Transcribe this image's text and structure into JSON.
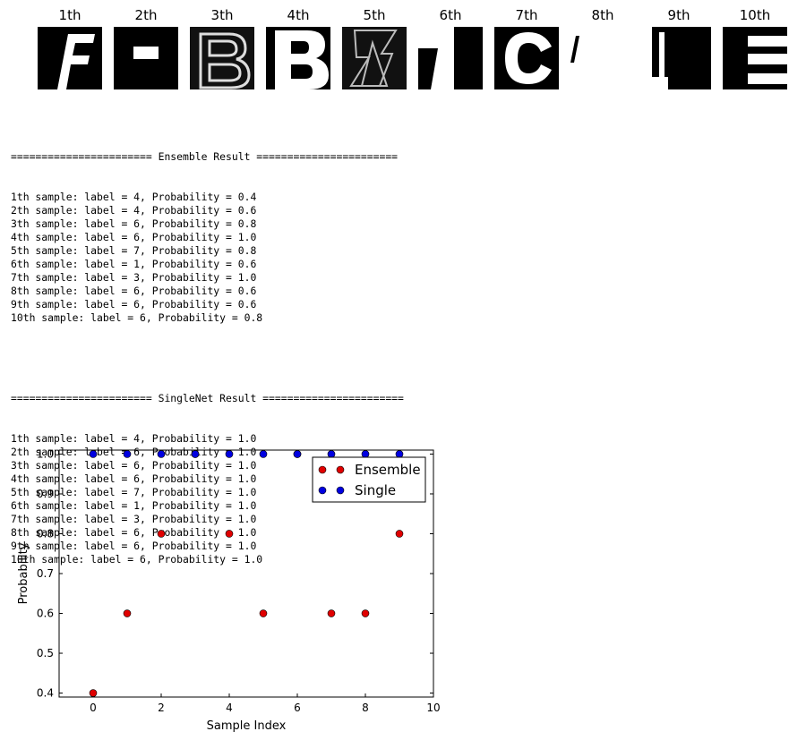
{
  "samples": {
    "labels": [
      "1th",
      "2th",
      "3th",
      "4th",
      "5th",
      "6th",
      "7th",
      "8th",
      "9th",
      "10th"
    ],
    "glyphs": [
      "F",
      "",
      "B",
      "B",
      "Z",
      "T",
      "C",
      "",
      "",
      "E"
    ]
  },
  "console": {
    "ensemble_header": "======================= Ensemble Result =======================",
    "ensemble_lines": [
      "1th sample: label = 4, Probability = 0.4",
      "2th sample: label = 4, Probability = 0.6",
      "3th sample: label = 6, Probability = 0.8",
      "4th sample: label = 6, Probability = 1.0",
      "5th sample: label = 7, Probability = 0.8",
      "6th sample: label = 1, Probability = 0.6",
      "7th sample: label = 3, Probability = 1.0",
      "8th sample: label = 6, Probability = 0.6",
      "9th sample: label = 6, Probability = 0.6",
      "10th sample: label = 6, Probability = 0.8"
    ],
    "single_header": "======================= SingleNet Result =======================",
    "single_lines": [
      "1th sample: label = 4, Probability = 1.0",
      "2th sample: label = 6, Probability = 1.0",
      "3th sample: label = 6, Probability = 1.0",
      "4th sample: label = 6, Probability = 1.0",
      "5th sample: label = 7, Probability = 1.0",
      "6th sample: label = 1, Probability = 1.0",
      "7th sample: label = 3, Probability = 1.0",
      "8th sample: label = 6, Probability = 1.0",
      "9th sample: label = 6, Probability = 1.0",
      "10th sample: label = 6, Probability = 1.0"
    ]
  },
  "chart_data": {
    "type": "scatter",
    "title": "",
    "xlabel": "Sample Index",
    "ylabel": "Probability",
    "xlim": [
      -1,
      10
    ],
    "ylim": [
      0.39,
      1.01
    ],
    "xticks": [
      0,
      2,
      4,
      6,
      8,
      10
    ],
    "yticks": [
      0.4,
      0.5,
      0.6,
      0.7,
      0.8,
      0.9,
      1.0
    ],
    "xtick_labels": [
      "0",
      "2",
      "4",
      "6",
      "8",
      "10"
    ],
    "ytick_labels": [
      "0.4",
      "0.5",
      "0.6",
      "0.7",
      "0.8",
      "0.9",
      "1.0"
    ],
    "grid": false,
    "legend": "top-right",
    "series": [
      {
        "name": "Ensemble",
        "color": "#e00000",
        "x": [
          0,
          1,
          2,
          3,
          4,
          5,
          6,
          7,
          8,
          9
        ],
        "y": [
          0.4,
          0.6,
          0.8,
          1.0,
          0.8,
          0.6,
          1.0,
          0.6,
          0.6,
          0.8
        ]
      },
      {
        "name": "Single",
        "color": "#0000e0",
        "x": [
          0,
          1,
          2,
          3,
          4,
          5,
          6,
          7,
          8,
          9
        ],
        "y": [
          1.0,
          1.0,
          1.0,
          1.0,
          1.0,
          1.0,
          1.0,
          1.0,
          1.0,
          1.0
        ]
      }
    ]
  }
}
